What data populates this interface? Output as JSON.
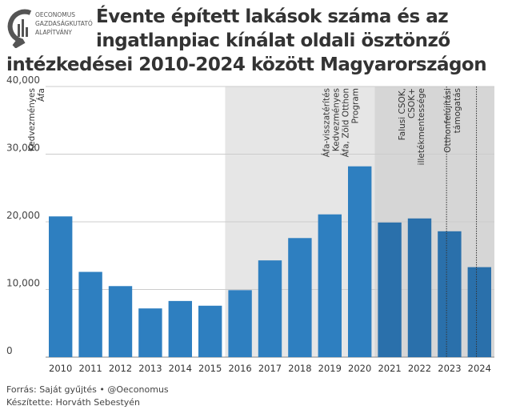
{
  "logo": {
    "line1": "OECONOMUS",
    "line2": "GAZDASÁGKUTATÓ",
    "line3": "ALAPÍTVÁNY"
  },
  "title": {
    "line1": "Évente épített lakások száma és az",
    "line2": "ingatlanpiac kínálat oldali ösztönző",
    "line3": "intézkedései 2010-2024 között Magyarországon"
  },
  "footer": {
    "source": "Forrás: Saját gyűjtés • @Oeconomus",
    "author": "Készítette: Horváth Sebestyén"
  },
  "chart_data": {
    "type": "bar",
    "categories": [
      "2010",
      "2011",
      "2012",
      "2013",
      "2014",
      "2015",
      "2016",
      "2017",
      "2018",
      "2019",
      "2020",
      "2021",
      "2022",
      "2023",
      "2024"
    ],
    "values": [
      20800,
      12600,
      10500,
      7200,
      8300,
      7600,
      9900,
      14300,
      17600,
      21100,
      28200,
      19900,
      20500,
      18600,
      13300
    ],
    "ylim": [
      0,
      40000
    ],
    "yticks": [
      "0",
      "10,000",
      "20,000",
      "30,000",
      "40,000"
    ],
    "bar_color": "#2e7fc0",
    "bar_color_dark": "#2a70ab",
    "shaded_regions": [
      {
        "from": "2016",
        "to": "2020",
        "color": "#e6e6e6"
      },
      {
        "from": "2021",
        "to": "2024",
        "color": "#d6d6d6"
      }
    ],
    "annotations": [
      {
        "year": "2016",
        "lines": [
          "Kedvezményes",
          "Áfa"
        ]
      },
      {
        "year": "2020",
        "lines": [
          "Áfa-visszatérítés",
          "Kedvezményes",
          "Áfa, Zöld Otthon",
          "Program"
        ]
      },
      {
        "year": "2022",
        "lines": [
          "Falusi CSOK,",
          "CSOK+",
          "illetékmentessége"
        ]
      },
      {
        "year": "2023",
        "lines": [
          "Otthonfelújítási",
          "támogatás"
        ]
      }
    ]
  }
}
